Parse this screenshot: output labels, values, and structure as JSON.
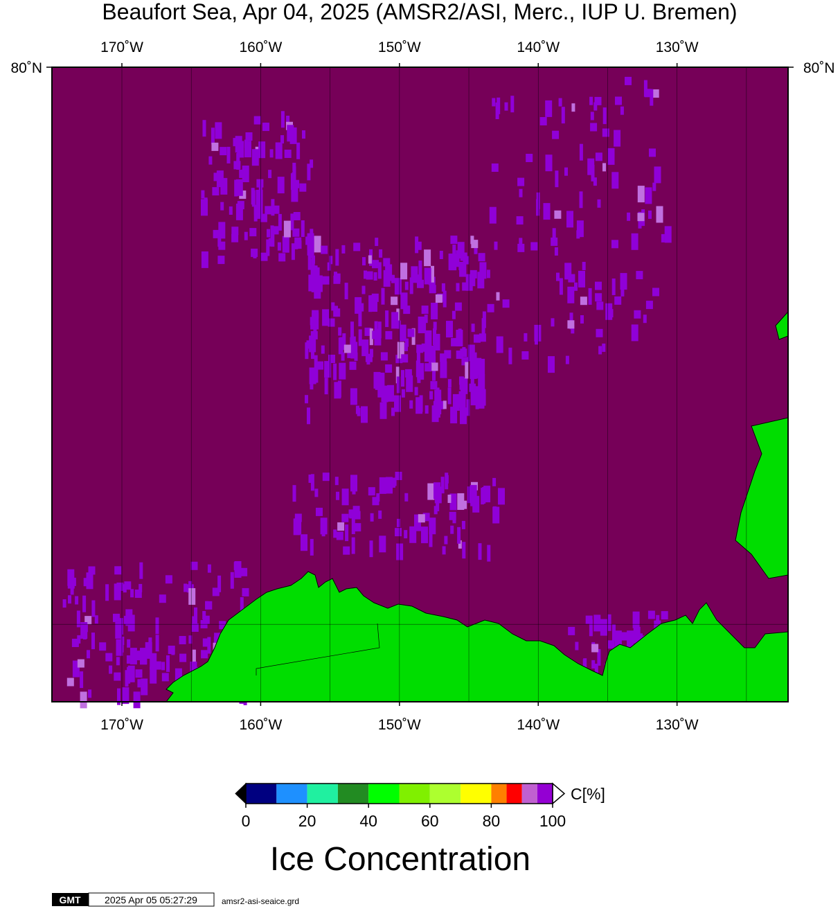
{
  "map": {
    "title": "Beaufort Sea, Apr 04, 2025 (AMSR2/ASI, Merc., IUP U. Bremen)",
    "lonlim": [
      -175.04,
      -122.0
    ],
    "latlim": [
      68,
      80
    ],
    "projection": "mercator",
    "lon_labels": [
      {
        "value": -170,
        "label": "170˚W"
      },
      {
        "value": -160,
        "label": "160˚W"
      },
      {
        "value": -150,
        "label": "150˚W"
      },
      {
        "value": -140,
        "label": "140˚W"
      },
      {
        "value": -130,
        "label": "130˚W"
      }
    ],
    "lon_grid": [
      -170,
      -165,
      -160,
      -155,
      -150,
      -145,
      -140,
      -135,
      -130,
      -125
    ],
    "lat_labels": [
      {
        "value": 80,
        "label": "80˚N"
      }
    ],
    "lat_grid": [
      70
    ],
    "ocean_color": "#760058",
    "land_color": "#00dd00",
    "colorbar": {
      "range": [
        0,
        100
      ],
      "bounds": [
        0,
        10,
        20,
        30,
        40,
        50,
        60,
        70,
        80,
        85,
        90,
        95,
        100
      ],
      "colors": [
        "#000080",
        "#1e90ff",
        "#20f0a0",
        "#228b22",
        "#00ff00",
        "#80f000",
        "#adff2f",
        "#ffff00",
        "#ff8000",
        "#ff0000",
        "#c060d0",
        "#9400d3"
      ],
      "ticks": [
        0,
        20,
        40,
        60,
        80,
        100
      ],
      "unit": "C[%]",
      "title": "Ice Concentration"
    },
    "footer": {
      "logo": "GMT",
      "timestamp": "2025 Apr 05 05:27:29",
      "file": "amsr2-asi-seaice.grd"
    }
  }
}
